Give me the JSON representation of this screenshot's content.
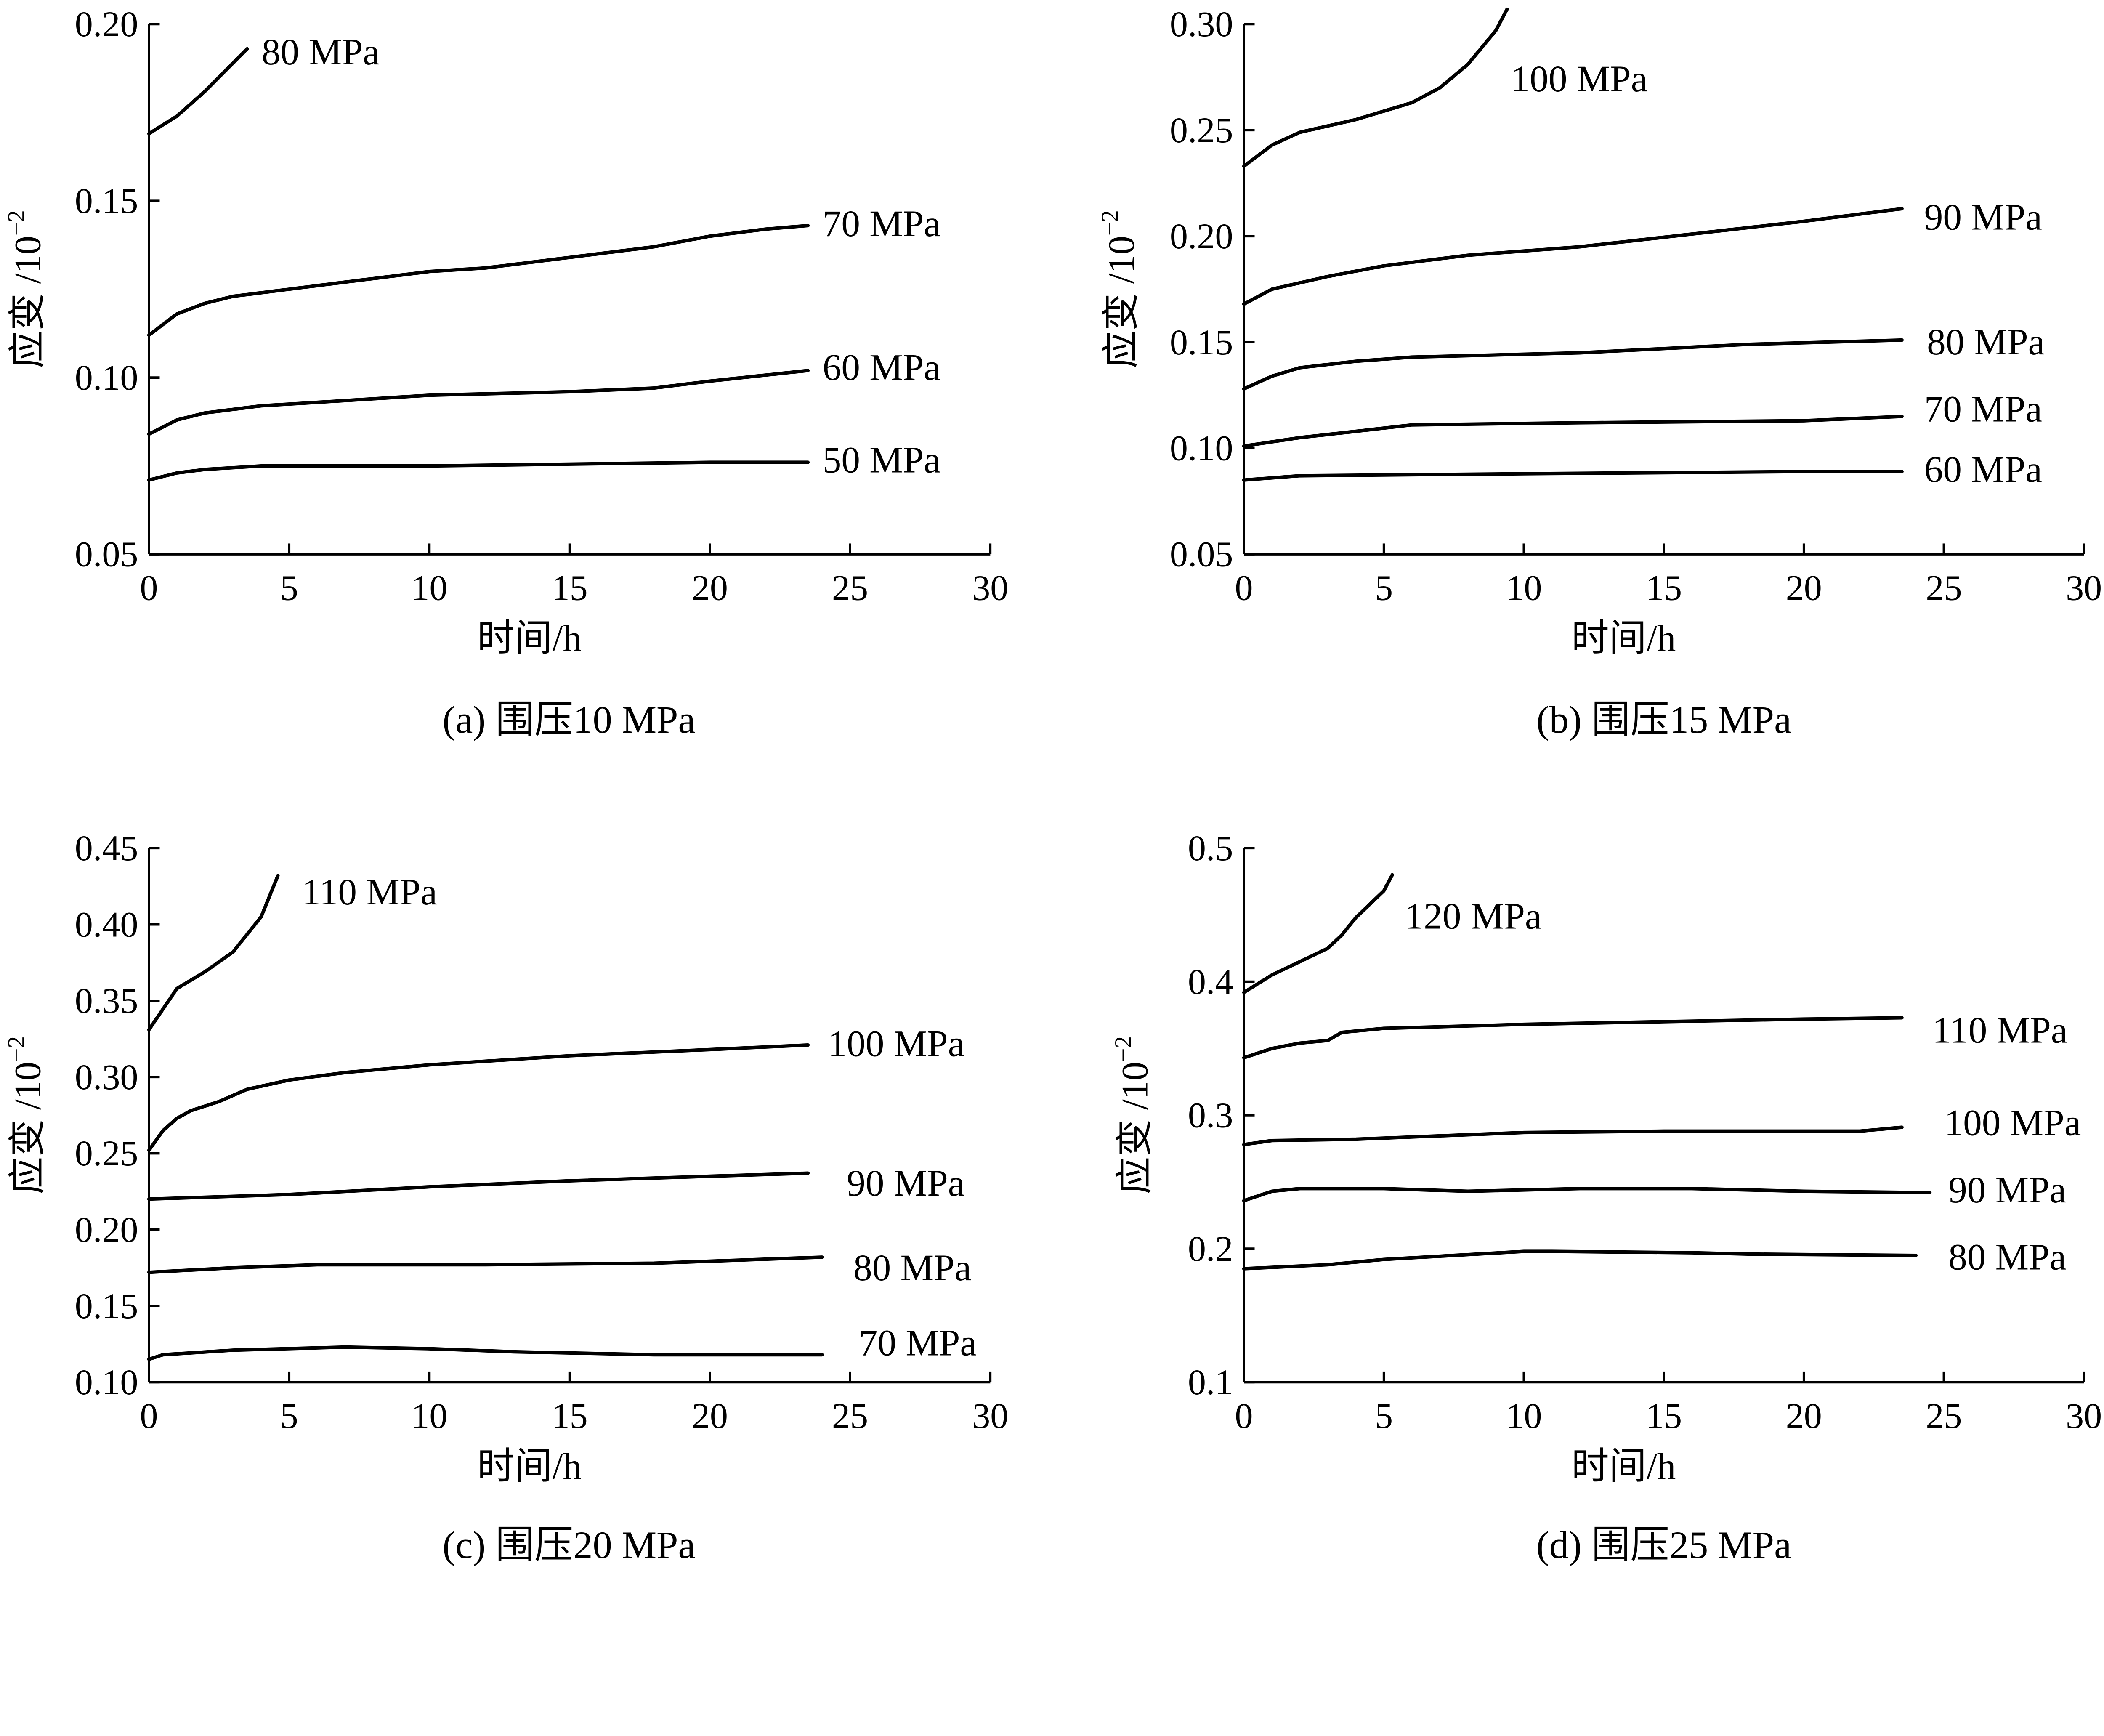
{
  "chart_data": [
    {
      "type": "line",
      "caption": "(a)  围压10 MPa",
      "xlabel": "时间/h",
      "ylabel_base": "应变 /10",
      "ylabel_exponent": "−2",
      "xlim": [
        0,
        30
      ],
      "ylim": [
        0.05,
        0.2
      ],
      "xticks": [
        "0",
        "5",
        "10",
        "15",
        "20",
        "25",
        "30"
      ],
      "yticks": [
        "0.05",
        "0.10",
        "0.15",
        "0.20"
      ],
      "grid": false,
      "series": [
        {
          "name": "80 MPa",
          "x": [
            0,
            1,
            2,
            3,
            3.5
          ],
          "y": [
            0.169,
            0.174,
            0.181,
            0.189,
            0.193
          ]
        },
        {
          "name": "70 MPa",
          "x": [
            0,
            1,
            2,
            3,
            5,
            7,
            10,
            12,
            15,
            18,
            20,
            22,
            23.5
          ],
          "y": [
            0.112,
            0.118,
            0.121,
            0.123,
            0.125,
            0.127,
            0.13,
            0.131,
            0.134,
            0.137,
            0.14,
            0.142,
            0.143
          ]
        },
        {
          "name": "60 MPa",
          "x": [
            0,
            1,
            2,
            4,
            6,
            10,
            15,
            18,
            20,
            23.5
          ],
          "y": [
            0.084,
            0.088,
            0.09,
            0.092,
            0.093,
            0.095,
            0.096,
            0.097,
            0.099,
            0.102
          ]
        },
        {
          "name": "50 MPa",
          "x": [
            0,
            1,
            2,
            4,
            10,
            20,
            23.5
          ],
          "y": [
            0.071,
            0.073,
            0.074,
            0.075,
            0.075,
            0.076,
            0.076
          ]
        }
      ]
    },
    {
      "type": "line",
      "caption": "(b)  围压15 MPa",
      "xlabel": "时间/h",
      "ylabel_base": "应变 /10",
      "ylabel_exponent": "−2",
      "xlim": [
        0,
        30
      ],
      "ylim": [
        0.05,
        0.3
      ],
      "xticks": [
        "0",
        "5",
        "10",
        "15",
        "20",
        "25",
        "30"
      ],
      "yticks": [
        "0.05",
        "0.10",
        "0.15",
        "0.20",
        "0.25",
        "0.30"
      ],
      "grid": false,
      "series": [
        {
          "name": "100 MPa",
          "x": [
            0,
            1,
            2,
            4,
            6,
            7,
            8,
            9,
            9.4
          ],
          "y": [
            0.233,
            0.243,
            0.249,
            0.255,
            0.263,
            0.27,
            0.281,
            0.297,
            0.307
          ]
        },
        {
          "name": "90 MPa",
          "x": [
            0,
            1,
            3,
            5,
            8,
            12,
            16,
            20,
            23.5
          ],
          "y": [
            0.168,
            0.175,
            0.181,
            0.186,
            0.191,
            0.195,
            0.201,
            0.207,
            0.213
          ]
        },
        {
          "name": "80 MPa",
          "x": [
            0,
            1,
            2,
            4,
            6,
            12,
            18,
            23.5
          ],
          "y": [
            0.128,
            0.134,
            0.138,
            0.141,
            0.143,
            0.145,
            0.149,
            0.151
          ]
        },
        {
          "name": "70 MPa",
          "x": [
            0,
            2,
            4,
            6,
            12,
            20,
            23.5
          ],
          "y": [
            0.101,
            0.105,
            0.108,
            0.111,
            0.112,
            0.113,
            0.115
          ]
        },
        {
          "name": "60 MPa",
          "x": [
            0,
            2,
            10,
            20,
            23.5
          ],
          "y": [
            0.085,
            0.087,
            0.088,
            0.089,
            0.089
          ]
        }
      ]
    },
    {
      "type": "line",
      "caption": "(c)  围压20 MPa",
      "xlabel": "时间/h",
      "ylabel_base": "应变 /10",
      "ylabel_exponent": "−2",
      "xlim": [
        0,
        30
      ],
      "ylim": [
        0.1,
        0.45
      ],
      "xticks": [
        "0",
        "5",
        "10",
        "15",
        "20",
        "25",
        "30"
      ],
      "yticks": [
        "0.10",
        "0.15",
        "0.20",
        "0.25",
        "0.30",
        "0.35",
        "0.40",
        "0.45"
      ],
      "grid": false,
      "series": [
        {
          "name": "110 MPa",
          "x": [
            0,
            1,
            2,
            3,
            4,
            4.6
          ],
          "y": [
            0.331,
            0.358,
            0.369,
            0.382,
            0.405,
            0.432
          ]
        },
        {
          "name": "100 MPa",
          "x": [
            0,
            0.5,
            1,
            1.5,
            2.5,
            3.5,
            5,
            7,
            10,
            15,
            20,
            23.5
          ],
          "y": [
            0.252,
            0.265,
            0.273,
            0.278,
            0.284,
            0.292,
            0.298,
            0.303,
            0.308,
            0.314,
            0.318,
            0.321
          ]
        },
        {
          "name": "90 MPa",
          "x": [
            0,
            5,
            10,
            15,
            20,
            23.5
          ],
          "y": [
            0.22,
            0.223,
            0.228,
            0.232,
            0.235,
            0.237
          ]
        },
        {
          "name": "80 MPa",
          "x": [
            0,
            3,
            6,
            12,
            18,
            24
          ],
          "y": [
            0.172,
            0.175,
            0.177,
            0.177,
            0.178,
            0.182
          ]
        },
        {
          "name": "70 MPa",
          "x": [
            0,
            0.5,
            3,
            7,
            10,
            13,
            18,
            24
          ],
          "y": [
            0.115,
            0.118,
            0.121,
            0.123,
            0.122,
            0.12,
            0.118,
            0.118
          ]
        }
      ]
    },
    {
      "type": "line",
      "caption": "(d)  围压25 MPa",
      "xlabel": "时间/h",
      "ylabel_base": "应变 /10",
      "ylabel_exponent": "−2",
      "xlim": [
        0,
        30
      ],
      "ylim": [
        0.1,
        0.5
      ],
      "xticks": [
        "0",
        "5",
        "10",
        "15",
        "20",
        "25",
        "30"
      ],
      "yticks": [
        "0.1",
        "0.2",
        "0.3",
        "0.4",
        "0.5"
      ],
      "grid": false,
      "series": [
        {
          "name": "120 MPa",
          "x": [
            0,
            1,
            2,
            3,
            3.5,
            4,
            5,
            5.3
          ],
          "y": [
            0.392,
            0.405,
            0.415,
            0.425,
            0.435,
            0.448,
            0.468,
            0.48
          ]
        },
        {
          "name": "110 MPa",
          "x": [
            0,
            1,
            2,
            3,
            3.5,
            5,
            10,
            15,
            20,
            23.5
          ],
          "y": [
            0.343,
            0.35,
            0.354,
            0.356,
            0.362,
            0.365,
            0.368,
            0.37,
            0.372,
            0.373
          ]
        },
        {
          "name": "100 MPa",
          "x": [
            0,
            1,
            4,
            10,
            15,
            22,
            23.5
          ],
          "y": [
            0.278,
            0.281,
            0.282,
            0.287,
            0.288,
            0.288,
            0.291
          ]
        },
        {
          "name": "90 MPa",
          "x": [
            0,
            1,
            2,
            5,
            8,
            12,
            16,
            20,
            24.5
          ],
          "y": [
            0.236,
            0.243,
            0.245,
            0.245,
            0.243,
            0.245,
            0.245,
            0.243,
            0.242
          ]
        },
        {
          "name": "80 MPa",
          "x": [
            0,
            3,
            5,
            10,
            11,
            16,
            18,
            24
          ],
          "y": [
            0.185,
            0.188,
            0.192,
            0.198,
            0.198,
            0.197,
            0.196,
            0.195
          ]
        }
      ]
    }
  ]
}
